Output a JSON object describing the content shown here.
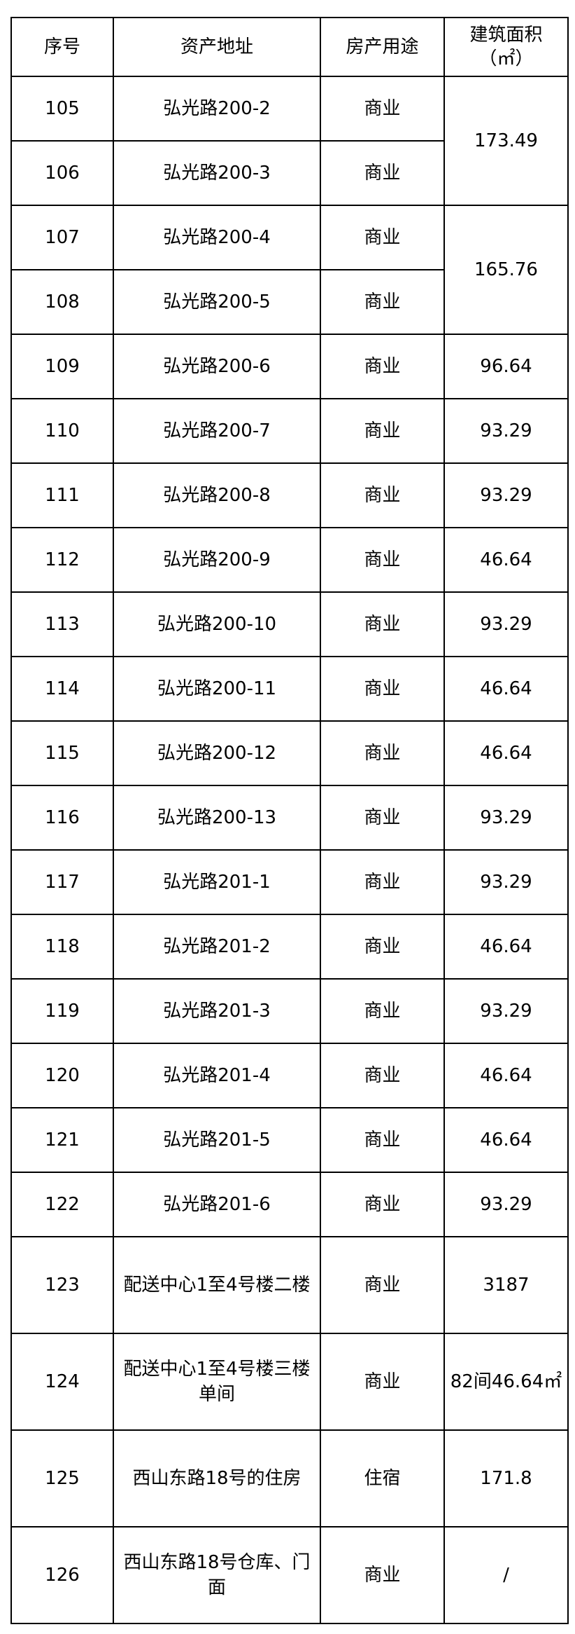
{
  "header": {
    "no": "序号",
    "address": "资产地址",
    "usage": "房产用途",
    "area": "建筑面积",
    "area_unit": "（㎡）"
  },
  "rows": [
    {
      "no": "105",
      "address": "弘光路200-2",
      "usage": "商业",
      "area": "173.49",
      "area_rowspan": 2
    },
    {
      "no": "106",
      "address": "弘光路200-3",
      "usage": "商业"
    },
    {
      "no": "107",
      "address": "弘光路200-4",
      "usage": "商业",
      "area": "165.76",
      "area_rowspan": 2
    },
    {
      "no": "108",
      "address": "弘光路200-5",
      "usage": "商业"
    },
    {
      "no": "109",
      "address": "弘光路200-6",
      "usage": "商业",
      "area": "96.64"
    },
    {
      "no": "110",
      "address": "弘光路200-7",
      "usage": "商业",
      "area": "93.29"
    },
    {
      "no": "111",
      "address": "弘光路200-8",
      "usage": "商业",
      "area": "93.29"
    },
    {
      "no": "112",
      "address": "弘光路200-9",
      "usage": "商业",
      "area": "46.64"
    },
    {
      "no": "113",
      "address": "弘光路200-10",
      "usage": "商业",
      "area": "93.29"
    },
    {
      "no": "114",
      "address": "弘光路200-11",
      "usage": "商业",
      "area": "46.64"
    },
    {
      "no": "115",
      "address": "弘光路200-12",
      "usage": "商业",
      "area": "46.64"
    },
    {
      "no": "116",
      "address": "弘光路200-13",
      "usage": "商业",
      "area": "93.29"
    },
    {
      "no": "117",
      "address": "弘光路201-1",
      "usage": "商业",
      "area": "93.29"
    },
    {
      "no": "118",
      "address": "弘光路201-2",
      "usage": "商业",
      "area": "46.64"
    },
    {
      "no": "119",
      "address": "弘光路201-3",
      "usage": "商业",
      "area": "93.29"
    },
    {
      "no": "120",
      "address": "弘光路201-4",
      "usage": "商业",
      "area": "46.64"
    },
    {
      "no": "121",
      "address": "弘光路201-5",
      "usage": "商业",
      "area": "46.64"
    },
    {
      "no": "122",
      "address": "弘光路201-6",
      "usage": "商业",
      "area": "93.29"
    },
    {
      "no": "123",
      "address": "配送中心1至4号楼二楼",
      "usage": "商业",
      "area": "3187",
      "tall": true
    },
    {
      "no": "124",
      "address": "配送中心1至4号楼三楼单间",
      "usage": "商业",
      "area": "82间46.64㎡",
      "tall": true
    },
    {
      "no": "125",
      "address": "西山东路18号的住房",
      "usage": "住宿",
      "area": "171.8",
      "tall": true
    },
    {
      "no": "126",
      "address": "西山东路18号仓库、门面",
      "usage": "商业",
      "area": "/",
      "tall": true
    }
  ]
}
